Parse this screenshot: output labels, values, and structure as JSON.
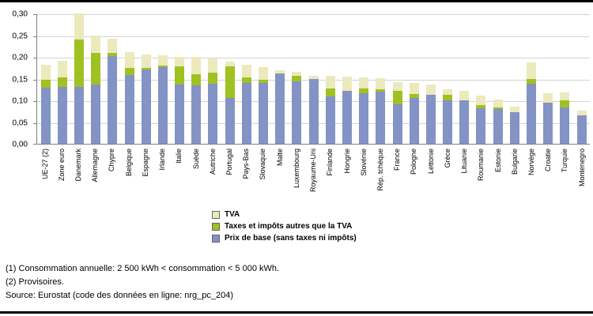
{
  "chart_data": {
    "type": "bar",
    "stacked": true,
    "title": "",
    "xlabel": "",
    "ylabel": "",
    "ylim": [
      0,
      0.3
    ],
    "ytick_step": 0.05,
    "ytick_labels": [
      "0,00",
      "0,05",
      "0,10",
      "0,15",
      "0,20",
      "0,25",
      "0,30"
    ],
    "grid": true,
    "legend_position": "bottom",
    "categories": [
      "UE-27 (2)",
      "Zone euro",
      "Danemark",
      "Allemagne",
      "Chypre",
      "Belgique",
      "Espagne",
      "Irlande",
      "Italie",
      "Suède",
      "Autriche",
      "Portugal",
      "Pays-Bas",
      "Slovaquie",
      "Malte",
      "Luxembourg",
      "Royaume-Uni",
      "Finlande",
      "Hongrie",
      "Slovénie",
      "Rép. tchèque",
      "France",
      "Pologne",
      "Lettonie",
      "Grèce",
      "Lituanie",
      "Roumanie",
      "Estonie",
      "Bulgarie",
      "Norvège",
      "Croatie",
      "Turquie",
      "Montenegro"
    ],
    "series": [
      {
        "name": "Prix de base (sans taxes ni impôts)",
        "color": "#8393c6",
        "values": [
          0.13,
          0.131,
          0.131,
          0.136,
          0.202,
          0.159,
          0.171,
          0.176,
          0.137,
          0.134,
          0.139,
          0.106,
          0.14,
          0.141,
          0.161,
          0.144,
          0.149,
          0.11,
          0.122,
          0.116,
          0.121,
          0.091,
          0.105,
          0.113,
          0.1,
          0.1,
          0.082,
          0.08,
          0.072,
          0.139,
          0.094,
          0.084,
          0.065
        ]
      },
      {
        "name": "Taxes et impôts autres que la TVA",
        "color": "#9fc121",
        "values": [
          0.017,
          0.021,
          0.109,
          0.074,
          0.008,
          0.016,
          0.003,
          0.004,
          0.042,
          0.026,
          0.025,
          0.073,
          0.012,
          0.006,
          0.0,
          0.013,
          0.0,
          0.017,
          0.0,
          0.011,
          0.005,
          0.031,
          0.01,
          0.0,
          0.012,
          0.0,
          0.008,
          0.004,
          0.0,
          0.01,
          0.0,
          0.016,
          0.0
        ]
      },
      {
        "name": "TVA",
        "color": "#ece9bc",
        "values": [
          0.034,
          0.038,
          0.06,
          0.04,
          0.032,
          0.036,
          0.031,
          0.024,
          0.021,
          0.04,
          0.033,
          0.01,
          0.029,
          0.029,
          0.008,
          0.009,
          0.007,
          0.03,
          0.033,
          0.025,
          0.025,
          0.02,
          0.026,
          0.024,
          0.014,
          0.021,
          0.021,
          0.017,
          0.014,
          0.039,
          0.023,
          0.018,
          0.011
        ]
      }
    ]
  },
  "footnotes": [
    "(1) Consommation annuelle: 2 500 kWh < consommation < 5 000 kWh.",
    "(2) Provisoires.",
    "Source: Eurostat (code des données en ligne: nrg_pc_204)"
  ]
}
